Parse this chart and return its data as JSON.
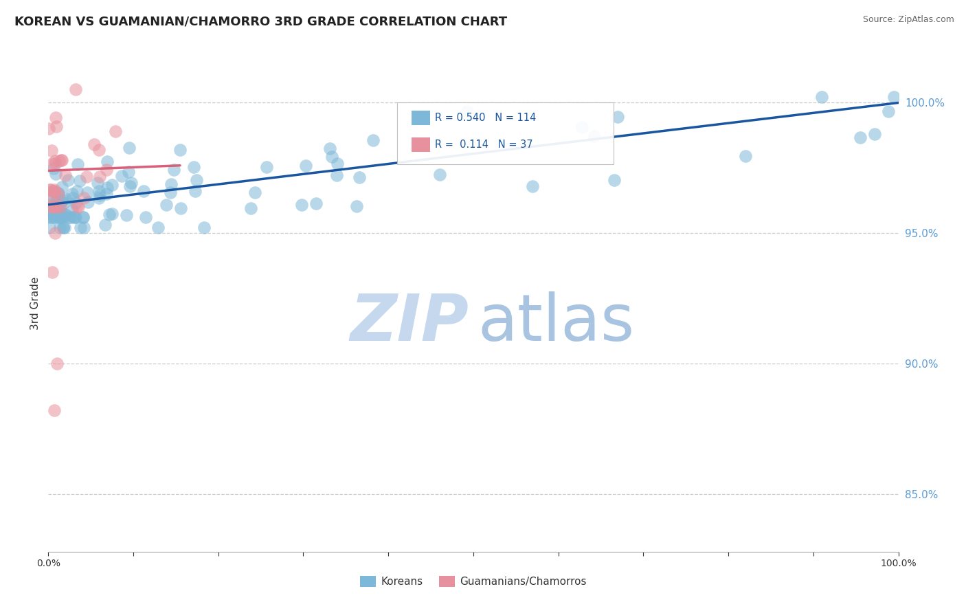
{
  "title": "KOREAN VS GUAMANIAN/CHAMORRO 3RD GRADE CORRELATION CHART",
  "source_text": "Source: ZipAtlas.com",
  "ylabel": "3rd Grade",
  "xlim": [
    0.0,
    1.0
  ],
  "ylim": [
    0.828,
    1.018
  ],
  "y_ticks": [
    0.85,
    0.9,
    0.95,
    1.0
  ],
  "x_ticks": [
    0.0,
    0.1,
    0.2,
    0.3,
    0.4,
    0.5,
    0.6,
    0.7,
    0.8,
    0.9,
    1.0
  ],
  "legend_r_korean": "R = 0.540",
  "legend_n_korean": "N = 114",
  "legend_r_guam": "R =  0.114",
  "legend_n_guam": "N = 37",
  "korean_color": "#7EB8D8",
  "guam_color": "#E8919E",
  "korean_line_color": "#1A56A0",
  "guam_line_color": "#D9607A",
  "background_color": "#FFFFFF",
  "grid_color": "#CCCCCC",
  "ytick_color": "#5B9BD5",
  "title_color": "#222222",
  "source_color": "#666666",
  "watermark_zip_color": "#C5D8EE",
  "watermark_atlas_color": "#A8C4E0",
  "dot_alpha": 0.55,
  "dot_size": 180,
  "legend_label_korean": "Koreans",
  "legend_label_guam": "Guamanians/Chamorros",
  "korean_line_x": [
    0.0,
    1.0
  ],
  "korean_line_y": [
    0.9608,
    0.9998
  ],
  "guam_line_x": [
    0.0,
    0.155
  ],
  "guam_line_y": [
    0.9738,
    0.9758
  ]
}
